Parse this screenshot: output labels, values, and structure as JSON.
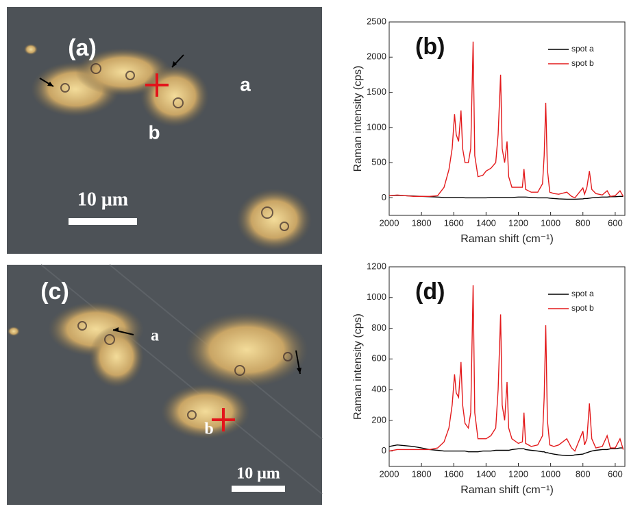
{
  "images": [
    {
      "panel_label": "(a)",
      "labels": [
        "a",
        "b"
      ],
      "scale_bar": "10 μm"
    },
    {
      "panel_label": "(c)",
      "labels": [
        "a",
        "b"
      ],
      "scale_bar": "10 μm"
    }
  ],
  "chart_data": [
    {
      "type": "line",
      "title": "(b)",
      "x_label": "Raman shift (cm⁻¹)",
      "y_label": "Raman intensity (cps)",
      "x": [
        2000,
        1950,
        1900,
        1850,
        1800,
        1750,
        1700,
        1660,
        1630,
        1610,
        1595,
        1585,
        1570,
        1555,
        1545,
        1530,
        1510,
        1495,
        1480,
        1470,
        1450,
        1420,
        1400,
        1370,
        1340,
        1325,
        1310,
        1300,
        1285,
        1270,
        1260,
        1240,
        1200,
        1175,
        1165,
        1155,
        1120,
        1080,
        1050,
        1040,
        1030,
        1020,
        1005,
        980,
        950,
        900,
        870,
        850,
        800,
        790,
        775,
        760,
        745,
        720,
        680,
        650,
        630,
        600,
        570,
        550
      ],
      "series": [
        {
          "name": "spot a",
          "color": "#000000",
          "values": [
            30,
            35,
            30,
            25,
            20,
            15,
            10,
            5,
            5,
            5,
            5,
            5,
            5,
            5,
            5,
            0,
            0,
            0,
            0,
            0,
            0,
            0,
            0,
            5,
            5,
            5,
            5,
            5,
            5,
            5,
            5,
            5,
            10,
            10,
            10,
            10,
            5,
            0,
            0,
            0,
            0,
            0,
            -5,
            -10,
            -15,
            -20,
            -20,
            -20,
            -15,
            -10,
            -10,
            -5,
            0,
            5,
            10,
            10,
            15,
            15,
            20,
            20
          ]
        },
        {
          "name": "spot b",
          "color": "#e31a1c",
          "values": [
            30,
            40,
            30,
            20,
            20,
            20,
            30,
            150,
            400,
            700,
            1190,
            900,
            800,
            1240,
            700,
            500,
            500,
            700,
            2220,
            600,
            300,
            320,
            380,
            420,
            500,
            900,
            1750,
            700,
            500,
            800,
            300,
            150,
            150,
            150,
            410,
            120,
            80,
            80,
            200,
            600,
            1350,
            400,
            80,
            60,
            50,
            80,
            20,
            0,
            140,
            50,
            150,
            380,
            120,
            60,
            40,
            100,
            20,
            30,
            100,
            20
          ]
        }
      ],
      "xlim": [
        2000,
        540
      ],
      "xticks": [
        2000,
        1800,
        1600,
        1400,
        1200,
        1000,
        800,
        600
      ],
      "ylim": [
        -250,
        2500
      ],
      "yticks": [
        0,
        500,
        1000,
        1500,
        2000,
        2500
      ],
      "legend": "upper right"
    },
    {
      "type": "line",
      "title": "(d)",
      "x_label": "Raman shift (cm⁻¹)",
      "y_label": "Raman intensity (cps)",
      "x": [
        2000,
        1950,
        1900,
        1850,
        1800,
        1750,
        1700,
        1660,
        1630,
        1610,
        1595,
        1585,
        1570,
        1555,
        1545,
        1530,
        1510,
        1495,
        1480,
        1470,
        1450,
        1420,
        1400,
        1370,
        1340,
        1325,
        1310,
        1300,
        1285,
        1270,
        1260,
        1240,
        1200,
        1175,
        1165,
        1155,
        1120,
        1080,
        1050,
        1040,
        1030,
        1020,
        1005,
        980,
        950,
        900,
        870,
        850,
        800,
        790,
        775,
        760,
        745,
        720,
        680,
        650,
        630,
        600,
        570,
        550
      ],
      "series": [
        {
          "name": "spot a",
          "color": "#000000",
          "values": [
            30,
            40,
            35,
            30,
            20,
            10,
            5,
            0,
            0,
            0,
            0,
            0,
            0,
            0,
            0,
            0,
            -5,
            -5,
            -5,
            -5,
            -5,
            0,
            0,
            0,
            5,
            5,
            5,
            5,
            5,
            5,
            5,
            10,
            15,
            15,
            15,
            10,
            5,
            0,
            -5,
            -5,
            -10,
            -10,
            -15,
            -20,
            -25,
            -30,
            -30,
            -25,
            -20,
            -15,
            -10,
            -5,
            0,
            5,
            10,
            10,
            15,
            15,
            20,
            20
          ]
        },
        {
          "name": "spot b",
          "color": "#e31a1c",
          "values": [
            0,
            10,
            10,
            10,
            10,
            10,
            20,
            60,
            150,
            300,
            500,
            380,
            350,
            580,
            300,
            180,
            150,
            250,
            1080,
            250,
            80,
            80,
            80,
            100,
            150,
            400,
            890,
            300,
            200,
            450,
            150,
            80,
            50,
            60,
            250,
            50,
            30,
            40,
            100,
            350,
            820,
            200,
            40,
            30,
            40,
            80,
            20,
            0,
            130,
            40,
            80,
            310,
            80,
            20,
            30,
            100,
            20,
            20,
            80,
            10
          ]
        }
      ],
      "xlim": [
        2000,
        540
      ],
      "xticks": [
        2000,
        1800,
        1600,
        1400,
        1200,
        1000,
        800,
        600
      ],
      "ylim": [
        -100,
        1200
      ],
      "yticks": [
        0,
        200,
        400,
        600,
        800,
        1000,
        1200
      ],
      "legend": "upper right"
    }
  ]
}
